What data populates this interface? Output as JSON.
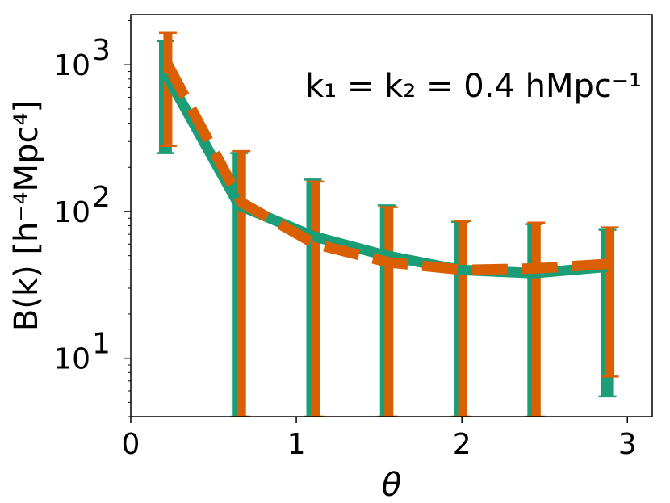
{
  "chart_data": {
    "type": "line",
    "x": [
      0.2094,
      0.6545,
      1.0996,
      1.5446,
      1.9897,
      2.4347,
      2.8798
    ],
    "xlabel": "θ",
    "ylabel": "B(k) [h⁻⁴Mpc⁴]",
    "annotation": "k₁ = k₂ = 0.4 hMpc⁻¹",
    "xlim": [
      0,
      3.15
    ],
    "ylim": [
      4,
      2200
    ],
    "yscale": "log",
    "xticks": [
      "0",
      "1",
      "2",
      "3"
    ],
    "yticks": [
      {
        "base": "10",
        "exp": "1",
        "value": 10
      },
      {
        "base": "10",
        "exp": "2",
        "value": 100
      },
      {
        "base": "10",
        "exp": "3",
        "value": 1000
      }
    ],
    "grid": false,
    "series": [
      {
        "style": "solid",
        "color": "#1b9e77",
        "values": [
          880,
          110,
          68,
          50,
          40,
          38,
          42
        ],
        "err_low": [
          250,
          4,
          4,
          4,
          4,
          4,
          5.5
        ],
        "err_high": [
          1450,
          250,
          165,
          110,
          85,
          82,
          75
        ]
      },
      {
        "style": "dashed",
        "color": "#d95f02",
        "values": [
          1000,
          115,
          60,
          45,
          40,
          41,
          44
        ],
        "err_low": [
          280,
          4,
          4,
          4,
          4,
          4,
          7.5
        ],
        "err_high": [
          1650,
          258,
          160,
          107,
          86,
          84,
          78
        ]
      }
    ]
  }
}
